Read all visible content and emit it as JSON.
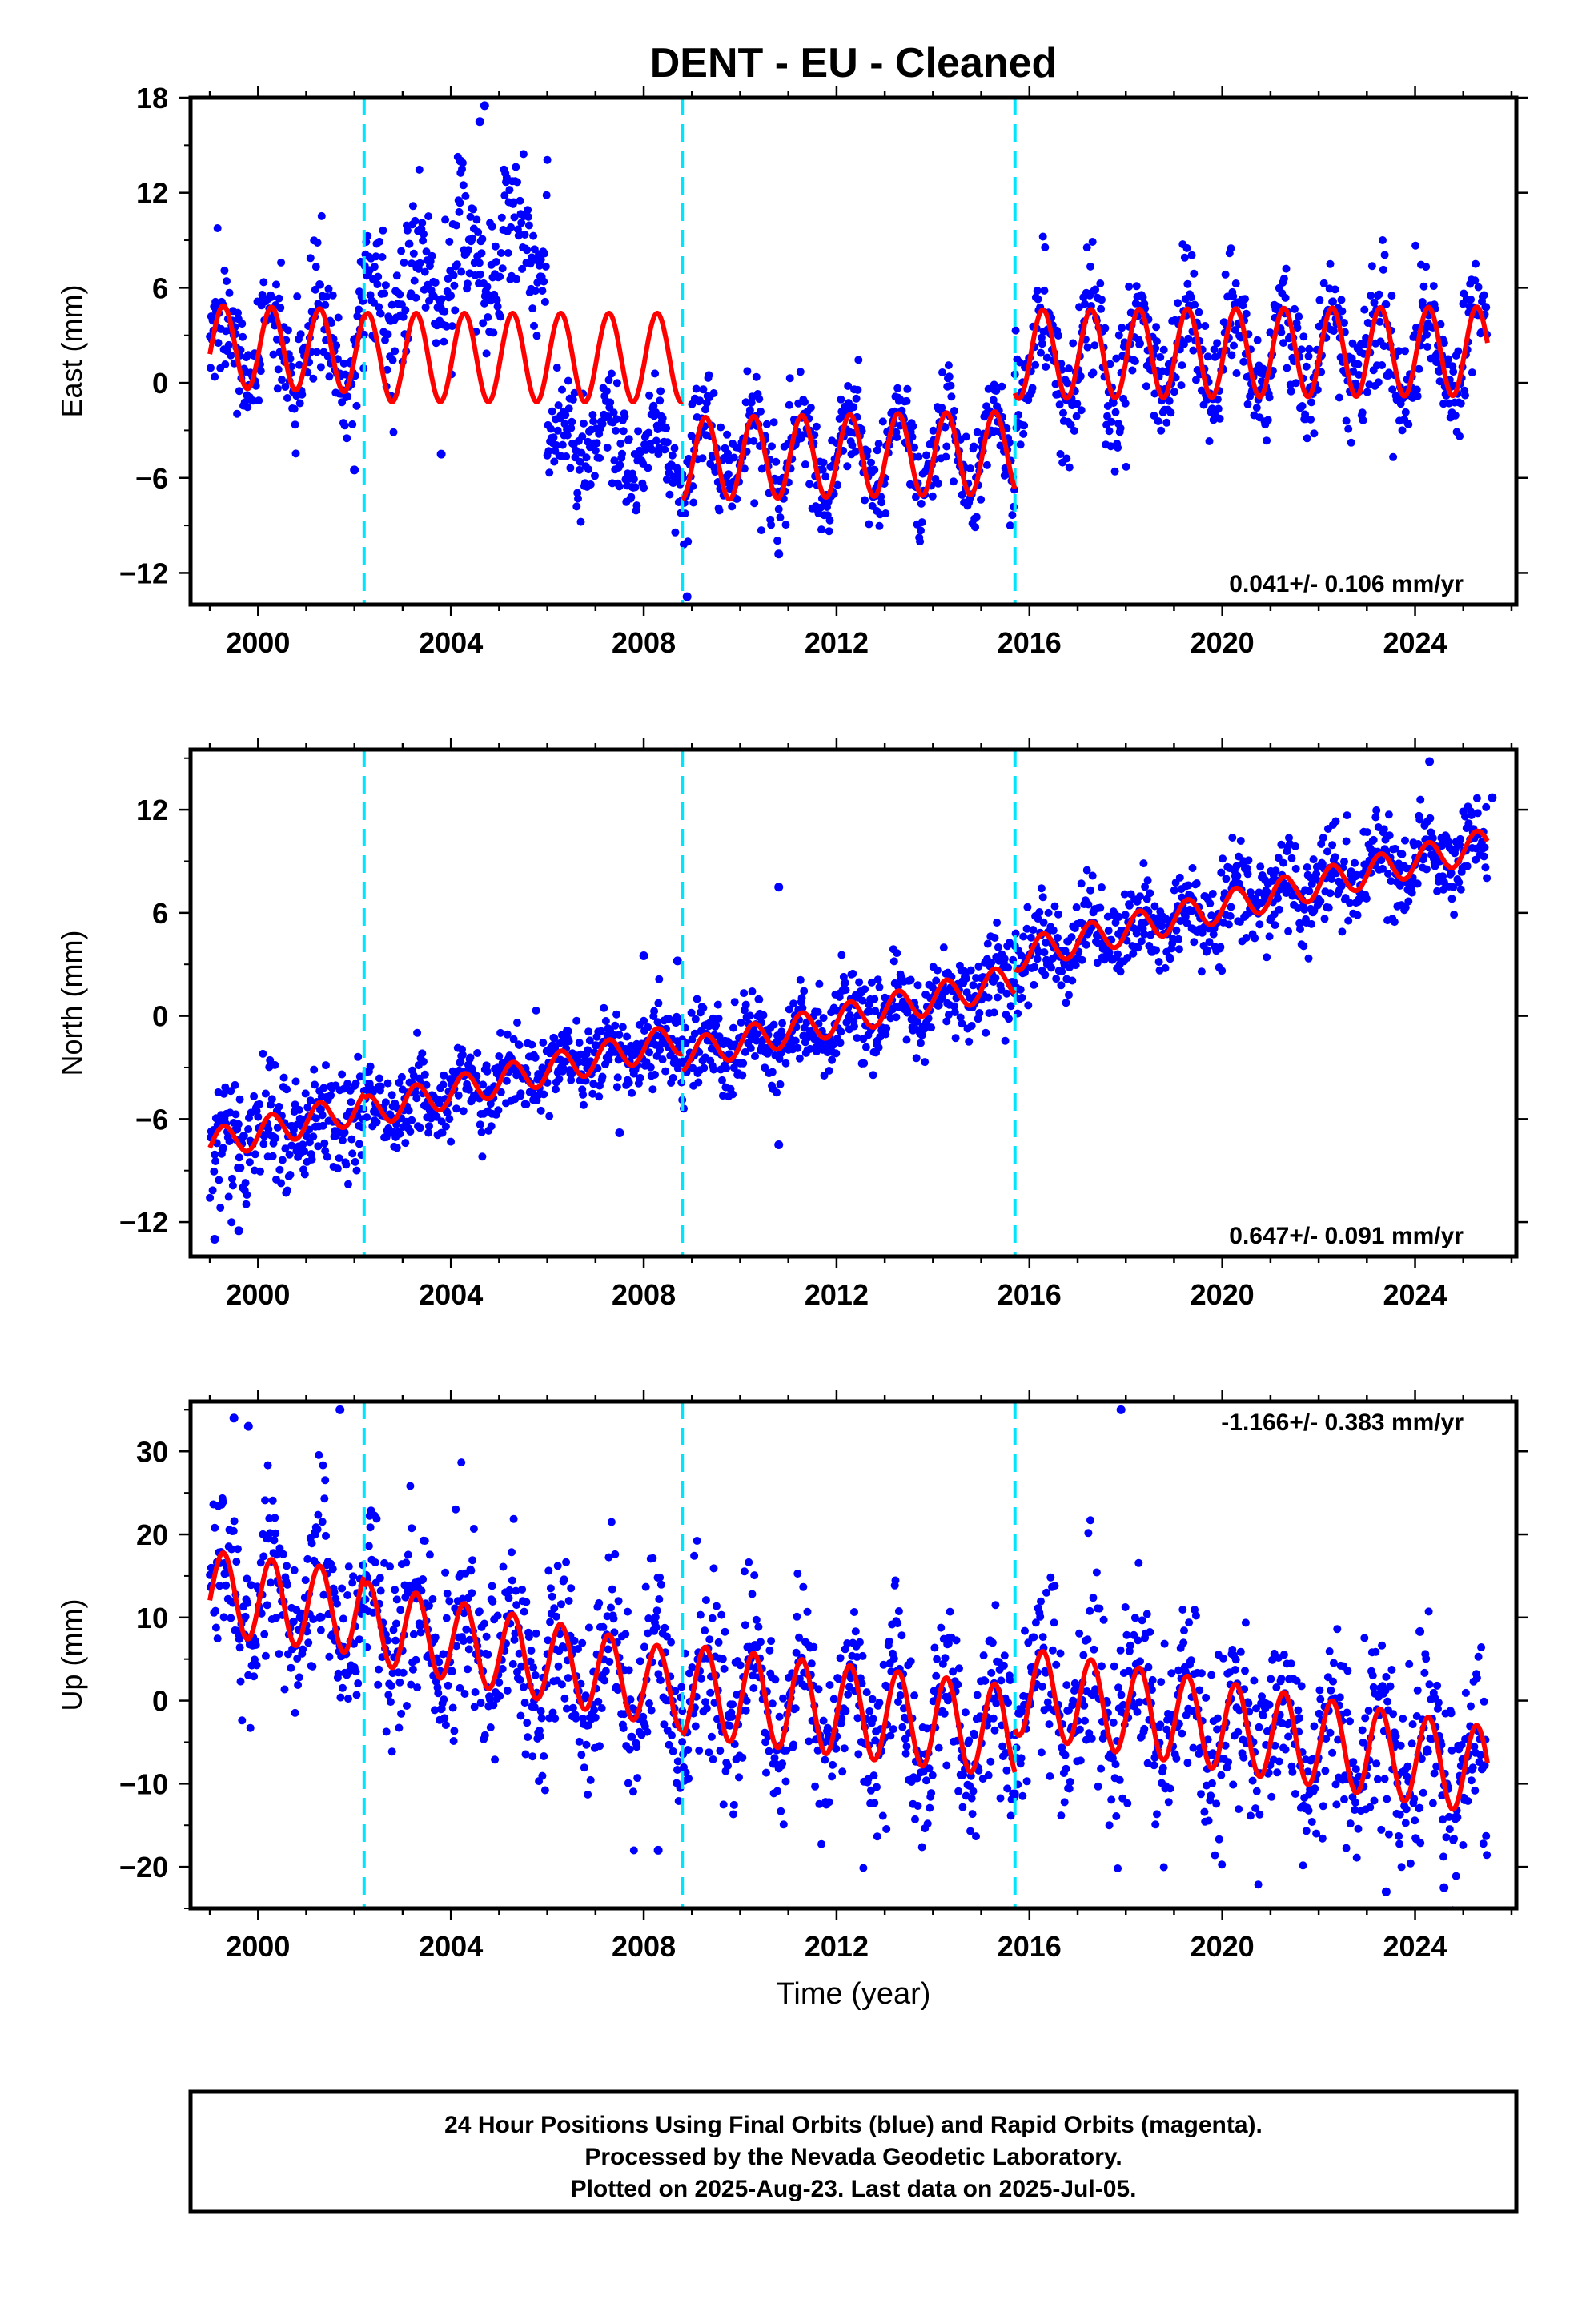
{
  "colors": {
    "final_orbits": "#0000ff",
    "model": "#ff0000",
    "event_lines": "#00e5ff",
    "axes": "#000000"
  },
  "chart_data": {
    "type": "scatter",
    "title": "DENT  - EU - Cleaned",
    "xlabel": "Time (year)",
    "x_range": [
      1998.6,
      2026.1
    ],
    "x_ticks": [
      2000,
      2004,
      2008,
      2012,
      2016,
      2020,
      2024
    ],
    "event_lines": [
      2002.2,
      2008.8,
      2015.7
    ],
    "panels": [
      {
        "key": "east",
        "ylabel": "East (mm)",
        "ylim": [
          -14,
          18
        ],
        "yticks": [
          -12,
          -6,
          0,
          6,
          12,
          18
        ],
        "rate_label": "0.041+/- 0.106 mm/yr",
        "rate_position": "bottom-right",
        "model_segments": [
          {
            "x0": 1999.0,
            "x1": 2002.2,
            "base_start": 2.3,
            "base_end": 2.0,
            "amp": 2.6
          },
          {
            "x0": 2002.2,
            "x1": 2008.8,
            "base_start": 1.6,
            "base_end": 1.6,
            "amp": 2.8
          },
          {
            "x0": 2008.8,
            "x1": 2015.7,
            "base_start": -4.8,
            "base_end": -4.4,
            "amp": 2.6
          },
          {
            "x0": 2015.7,
            "x1": 2025.5,
            "base_start": 1.8,
            "base_end": 2.0,
            "amp": 2.8
          }
        ],
        "observations": [
          {
            "x0": 1999.0,
            "x1": 2002.2,
            "base_start": 2.3,
            "base_end": 2.0,
            "amp": 2.6,
            "spread": 2.0
          },
          {
            "x0": 2002.2,
            "x1": 2006.0,
            "base_start": 5.0,
            "base_end": 9.5,
            "amp": 2.5,
            "spread": 2.3
          },
          {
            "x0": 2006.0,
            "x1": 2008.8,
            "base_start": -3.8,
            "base_end": -4.6,
            "amp": 1.6,
            "spread": 1.6
          },
          {
            "x0": 2008.8,
            "x1": 2015.7,
            "base_start": -4.6,
            "base_end": -4.3,
            "amp": 2.5,
            "spread": 1.6
          },
          {
            "x0": 2015.7,
            "x1": 2025.5,
            "base_start": 1.8,
            "base_end": 2.0,
            "amp": 2.8,
            "spread": 1.9
          }
        ],
        "outliers": [
          [
            2004.6,
            16.5
          ],
          [
            2004.7,
            17.5
          ],
          [
            2004.2,
            14.0
          ],
          [
            2002.0,
            -5.5
          ],
          [
            2003.8,
            -4.5
          ],
          [
            2008.9,
            -13.5
          ],
          [
            2010.8,
            -10.8
          ]
        ]
      },
      {
        "key": "north",
        "ylabel": "North (mm)",
        "ylim": [
          -14,
          15.5
        ],
        "yticks": [
          -12,
          -6,
          0,
          6,
          12
        ],
        "rate_label": "0.647+/- 0.091 mm/yr",
        "rate_position": "bottom-right",
        "model_segments": [
          {
            "x0": 1999.0,
            "x1": 2002.2,
            "base_start": -7.5,
            "base_end": -5.3,
            "amp": 0.9
          },
          {
            "x0": 2002.2,
            "x1": 2008.8,
            "base_start": -5.6,
            "base_end": -1.3,
            "amp": 0.9
          },
          {
            "x0": 2008.8,
            "x1": 2015.7,
            "base_start": -2.3,
            "base_end": 2.1,
            "amp": 0.9
          },
          {
            "x0": 2015.7,
            "x1": 2025.5,
            "base_start": 3.5,
            "base_end": 10.0,
            "amp": 0.9
          }
        ],
        "observations": [
          {
            "x0": 1999.0,
            "x1": 2002.2,
            "base_start": -7.8,
            "base_end": -5.3,
            "amp": 0.9,
            "spread": 1.7
          },
          {
            "x0": 2002.2,
            "x1": 2008.8,
            "base_start": -5.6,
            "base_end": -1.3,
            "amp": 0.9,
            "spread": 1.2
          },
          {
            "x0": 2008.8,
            "x1": 2015.7,
            "base_start": -2.3,
            "base_end": 2.1,
            "amp": 0.9,
            "spread": 1.2
          },
          {
            "x0": 2015.7,
            "x1": 2025.5,
            "base_start": 3.5,
            "base_end": 10.0,
            "amp": 0.9,
            "spread": 1.3
          }
        ],
        "outliers": [
          [
            2010.8,
            7.5
          ],
          [
            2010.8,
            -7.5
          ],
          [
            2008.0,
            3.5
          ],
          [
            2024.3,
            14.8
          ],
          [
            2025.6,
            12.7
          ],
          [
            1999.1,
            -13.0
          ],
          [
            1999.6,
            -12.5
          ],
          [
            2007.5,
            -6.8
          ],
          [
            2008.7,
            3.2
          ]
        ]
      },
      {
        "key": "up",
        "ylabel": "Up (mm)",
        "ylim": [
          -25,
          36
        ],
        "yticks": [
          -20,
          -10,
          0,
          10,
          20,
          30
        ],
        "rate_label": "-1.166+/- 0.383 mm/yr",
        "rate_position": "top-right",
        "model_segments": [
          {
            "x0": 1999.0,
            "x1": 2002.2,
            "base_start": 13.0,
            "base_end": 10.5,
            "amp": 5.0
          },
          {
            "x0": 2002.2,
            "x1": 2008.8,
            "base_start": 9.5,
            "base_end": 1.2,
            "amp": 4.8
          },
          {
            "x0": 2008.8,
            "x1": 2015.7,
            "base_start": 1.3,
            "base_end": -3.8,
            "amp": 5.5
          },
          {
            "x0": 2015.7,
            "x1": 2025.5,
            "base_start": 1.2,
            "base_end": -8.5,
            "amp": 5.3
          }
        ],
        "observations": [
          {
            "x0": 1999.0,
            "x1": 2002.2,
            "base_start": 13.0,
            "base_end": 10.5,
            "amp": 5.0,
            "spread": 5.5
          },
          {
            "x0": 2002.2,
            "x1": 2008.8,
            "base_start": 9.5,
            "base_end": 1.2,
            "amp": 4.8,
            "spread": 5.2
          },
          {
            "x0": 2008.8,
            "x1": 2015.7,
            "base_start": 1.3,
            "base_end": -3.8,
            "amp": 5.5,
            "spread": 5.2
          },
          {
            "x0": 2015.7,
            "x1": 2025.5,
            "base_start": 1.2,
            "base_end": -8.5,
            "amp": 5.3,
            "spread": 5.5
          }
        ],
        "outliers": [
          [
            1999.5,
            34.0
          ],
          [
            1999.8,
            33.0
          ],
          [
            2001.7,
            35.0
          ],
          [
            2017.9,
            35.0
          ],
          [
            2024.1,
            8.3
          ],
          [
            2023.4,
            -23.0
          ],
          [
            2024.6,
            -22.5
          ],
          [
            2008.3,
            -18.0
          ]
        ]
      }
    ]
  },
  "footer": {
    "line1": "24 Hour Positions Using Final Orbits (blue) and Rapid Orbits (magenta).",
    "line2": "Processed by the Nevada Geodetic Laboratory.",
    "line3": "Plotted on 2025-Aug-23. Last data on 2025-Jul-05."
  }
}
